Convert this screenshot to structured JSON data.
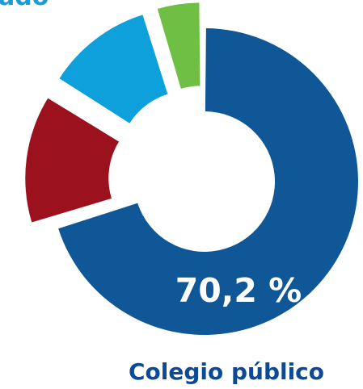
{
  "title_fragment": "ado",
  "chart_data": {
    "type": "pie",
    "style": "donut",
    "category": "Colegio público",
    "slices": [
      {
        "value": 70.2,
        "label": "70,2 %",
        "color": "#0f5796",
        "exploded": false
      },
      {
        "value": 13.7,
        "label": "",
        "color": "#9b111e",
        "exploded": true
      },
      {
        "value": 11.4,
        "label": "",
        "color": "#0ea0db",
        "exploded": true
      },
      {
        "value": 4.7,
        "label": "",
        "color": "#6fbf44",
        "exploded": true
      }
    ]
  }
}
